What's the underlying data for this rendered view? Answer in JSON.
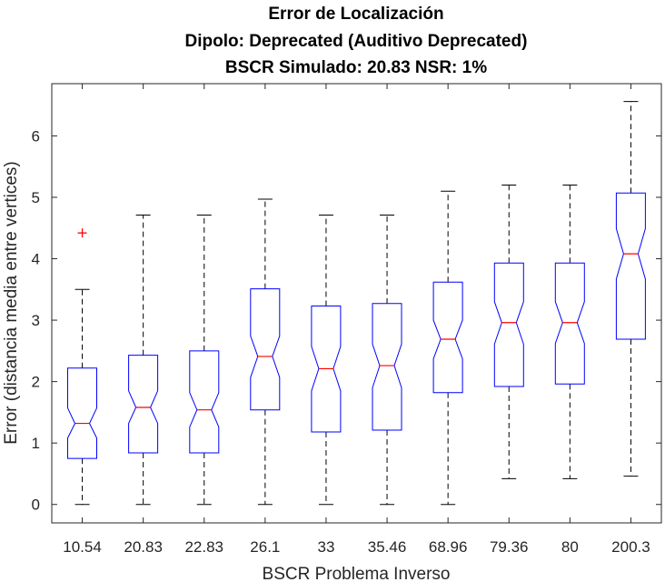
{
  "chart_data": {
    "type": "boxplot",
    "title": [
      "Error de Localización",
      "Dipolo: Deprecated (Auditivo Deprecated)",
      "BSCR Simulado: 20.83 NSR: 1%"
    ],
    "xlabel": "BSCR Problema Inverso",
    "ylabel": "Error (distancia media entre vertices)",
    "ylim": [
      -0.3,
      6.85
    ],
    "yticks": [
      0,
      1,
      2,
      3,
      4,
      5,
      6
    ],
    "grid": false,
    "categories": [
      "10.54",
      "20.83",
      "22.83",
      "26.1",
      "33",
      "35.46",
      "68.96",
      "79.36",
      "80",
      "200.3"
    ],
    "boxes": [
      {
        "whisker_low": 0,
        "q1": 0.75,
        "median": 1.32,
        "q3": 2.22,
        "whisker_high": 3.5,
        "notch_low": 1.08,
        "notch_high": 1.57,
        "outliers": [
          4.42
        ]
      },
      {
        "whisker_low": 0,
        "q1": 0.84,
        "median": 1.58,
        "q3": 2.43,
        "whisker_high": 4.71,
        "notch_low": 1.32,
        "notch_high": 1.85,
        "outliers": []
      },
      {
        "whisker_low": 0,
        "q1": 0.84,
        "median": 1.54,
        "q3": 2.5,
        "whisker_high": 4.71,
        "notch_low": 1.26,
        "notch_high": 1.82,
        "outliers": []
      },
      {
        "whisker_low": 0,
        "q1": 1.54,
        "median": 2.41,
        "q3": 3.51,
        "whisker_high": 4.97,
        "notch_low": 2.07,
        "notch_high": 2.74,
        "outliers": []
      },
      {
        "whisker_low": 0,
        "q1": 1.18,
        "median": 2.21,
        "q3": 3.23,
        "whisker_high": 4.71,
        "notch_low": 1.85,
        "notch_high": 2.57,
        "outliers": []
      },
      {
        "whisker_low": 0,
        "q1": 1.21,
        "median": 2.26,
        "q3": 3.27,
        "whisker_high": 4.71,
        "notch_low": 1.9,
        "notch_high": 2.61,
        "outliers": []
      },
      {
        "whisker_low": 0,
        "q1": 1.82,
        "median": 2.69,
        "q3": 3.62,
        "whisker_high": 5.1,
        "notch_low": 2.37,
        "notch_high": 3.0,
        "outliers": []
      },
      {
        "whisker_low": 0.42,
        "q1": 1.92,
        "median": 2.96,
        "q3": 3.93,
        "whisker_high": 5.2,
        "notch_low": 2.61,
        "notch_high": 3.3,
        "outliers": []
      },
      {
        "whisker_low": 0.42,
        "q1": 1.96,
        "median": 2.96,
        "q3": 3.93,
        "whisker_high": 5.2,
        "notch_low": 2.62,
        "notch_high": 3.3,
        "outliers": []
      },
      {
        "whisker_low": 0.46,
        "q1": 2.69,
        "median": 4.08,
        "q3": 5.07,
        "whisker_high": 6.56,
        "notch_low": 3.67,
        "notch_high": 4.49,
        "outliers": []
      }
    ],
    "colors": {
      "box": "#0000ff",
      "median": "#ff0000",
      "whisker": "#000000",
      "outlier": "#ff0000",
      "axis": "#262626"
    }
  }
}
